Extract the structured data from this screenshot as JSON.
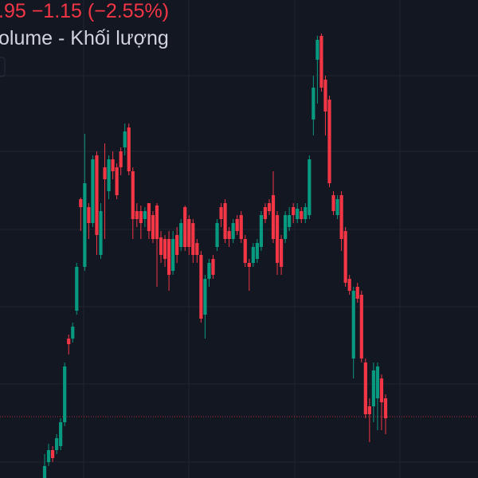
{
  "chart_data": {
    "type": "candlestick",
    "title": ".95 −1.15 (−2.55%)",
    "subtitle": "olume - Khối lượng",
    "up_color": "#089981",
    "down_color": "#f23645",
    "ylim": [
      40.1,
      70.1
    ],
    "candles": [
      [
        40.1,
        41.6,
        40.1,
        40.85
      ],
      [
        41.1,
        42.25,
        40.85,
        41.85
      ],
      [
        41.85,
        42.1,
        41.1,
        41.35
      ],
      [
        41.85,
        42.85,
        41.6,
        42.6
      ],
      [
        42.1,
        43.85,
        41.85,
        43.6
      ],
      [
        43.6,
        47.35,
        43.35,
        47.1
      ],
      [
        48.85,
        49.1,
        47.85,
        48.5
      ],
      [
        48.85,
        49.85,
        48.6,
        49.6
      ],
      [
        50.6,
        53.6,
        50.35,
        53.35
      ],
      [
        57.6,
        57.7,
        55.6,
        57.1
      ],
      [
        53.35,
        61.7,
        53.1,
        58.6
      ],
      [
        57.1,
        57.35,
        55.1,
        56.1
      ],
      [
        56.1,
        60.35,
        55.85,
        60.1
      ],
      [
        60.35,
        60.6,
        54.1,
        55.35
      ],
      [
        54.1,
        57.35,
        53.85,
        56.85
      ],
      [
        59.6,
        61.1,
        55.1,
        58.85
      ],
      [
        58.1,
        60.35,
        57.6,
        60.1
      ],
      [
        60.1,
        60.6,
        58.85,
        59.35
      ],
      [
        59.6,
        59.85,
        57.6,
        57.85
      ],
      [
        60.6,
        60.85,
        59.1,
        59.6
      ],
      [
        60.85,
        62.35,
        60.35,
        61.85
      ],
      [
        62.1,
        62.35,
        59.1,
        59.35
      ],
      [
        59.35,
        59.6,
        55.1,
        56.35
      ],
      [
        56.85,
        57.35,
        55.85,
        56.35
      ],
      [
        56.85,
        57.2,
        55.1,
        56.1
      ],
      [
        56.35,
        57.1,
        55.85,
        56.85
      ],
      [
        57.35,
        57.35,
        55.1,
        55.6
      ],
      [
        56.6,
        56.85,
        54.85,
        55.1
      ],
      [
        57.2,
        57.35,
        52.1,
        55.1
      ],
      [
        55.2,
        55.6,
        53.6,
        54.1
      ],
      [
        55.1,
        55.35,
        53.35,
        53.85
      ],
      [
        55.1,
        55.6,
        51.85,
        52.85
      ],
      [
        53.1,
        55.6,
        52.85,
        55.1
      ],
      [
        55.35,
        55.85,
        53.6,
        54.1
      ],
      [
        54.6,
        56.35,
        54.35,
        56.1
      ],
      [
        57.1,
        57.2,
        54.35,
        54.6
      ],
      [
        56.35,
        56.6,
        54.1,
        54.6
      ],
      [
        56.1,
        56.35,
        53.6,
        54.1
      ],
      [
        54.85,
        55.1,
        53.6,
        54.1
      ],
      [
        54.1,
        54.35,
        49.85,
        50.1
      ],
      [
        50.35,
        52.85,
        48.85,
        52.6
      ],
      [
        52.6,
        53.85,
        52.1,
        53.6
      ],
      [
        53.85,
        54.1,
        52.6,
        52.85
      ],
      [
        54.6,
        56.35,
        54.35,
        56.1
      ],
      [
        57.1,
        57.35,
        55.85,
        56.35
      ],
      [
        57.35,
        57.6,
        54.85,
        55.1
      ],
      [
        55.6,
        55.85,
        54.6,
        55.1
      ],
      [
        55.1,
        56.35,
        54.85,
        56.1
      ],
      [
        56.35,
        56.6,
        55.35,
        55.6
      ],
      [
        56.6,
        56.85,
        54.85,
        55.1
      ],
      [
        55.1,
        55.35,
        53.35,
        53.6
      ],
      [
        53.6,
        53.85,
        51.85,
        53.35
      ],
      [
        53.6,
        54.85,
        53.35,
        54.6
      ],
      [
        53.85,
        55.1,
        53.6,
        54.85
      ],
      [
        54.6,
        56.85,
        54.35,
        56.6
      ],
      [
        57.1,
        57.35,
        56.1,
        56.35
      ],
      [
        57.35,
        57.6,
        56.6,
        56.85
      ],
      [
        57.85,
        59.35,
        54.85,
        55.1
      ],
      [
        56.6,
        56.85,
        52.85,
        53.6
      ],
      [
        55.1,
        55.35,
        52.85,
        53.35
      ],
      [
        55.1,
        56.85,
        54.85,
        56.6
      ],
      [
        55.85,
        57.1,
        55.6,
        56.6
      ],
      [
        57.1,
        57.35,
        56.1,
        56.6
      ],
      [
        56.35,
        57.35,
        56.1,
        57.0
      ],
      [
        56.85,
        57.1,
        56.1,
        56.35
      ],
      [
        56.35,
        57.35,
        56.1,
        57.1
      ],
      [
        56.6,
        60.35,
        56.35,
        60.1
      ],
      [
        62.6,
        65.35,
        61.6,
        64.6
      ],
      [
        66.35,
        67.85,
        63.6,
        67.6
      ],
      [
        67.85,
        68.0,
        64.35,
        64.6
      ],
      [
        65.1,
        65.35,
        61.6,
        63.1
      ],
      [
        63.85,
        64.1,
        58.35,
        58.6
      ],
      [
        57.85,
        58.1,
        56.6,
        56.85
      ],
      [
        56.6,
        57.85,
        56.35,
        57.6
      ],
      [
        57.85,
        58.1,
        54.35,
        55.1
      ],
      [
        55.6,
        55.85,
        52.1,
        52.35
      ],
      [
        52.6,
        52.85,
        51.6,
        51.85
      ],
      [
        47.6,
        52.1,
        46.35,
        51.85
      ],
      [
        52.1,
        52.35,
        51.1,
        51.35
      ],
      [
        51.6,
        51.85,
        47.35,
        47.6
      ],
      [
        47.35,
        47.6,
        43.85,
        44.1
      ],
      [
        44.6,
        45.1,
        42.35,
        44.1
      ],
      [
        44.6,
        47.35,
        43.6,
        46.85
      ],
      [
        45.1,
        47.35,
        43.1,
        47.1
      ],
      [
        46.35,
        46.6,
        43.1,
        44.85
      ],
      [
        45.1,
        45.35,
        42.85,
        43.85
      ]
    ]
  }
}
